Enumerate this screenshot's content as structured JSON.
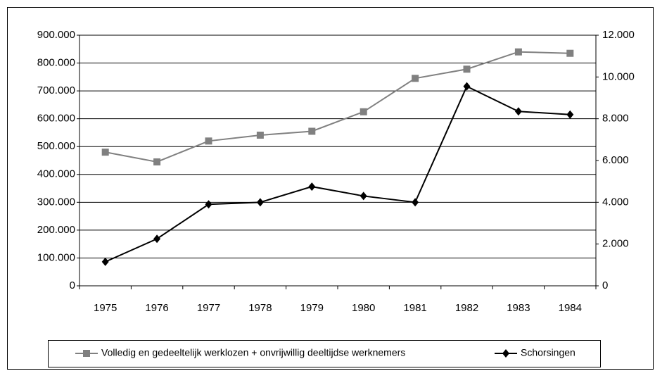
{
  "chart_data": {
    "type": "line",
    "categories": [
      "1975",
      "1976",
      "1977",
      "1978",
      "1979",
      "1980",
      "1981",
      "1982",
      "1983",
      "1984"
    ],
    "series": [
      {
        "name": "Volledig en gedeeltelijk werklozen + onvrijwillig deeltijdse werknemers",
        "color": "#808080",
        "marker": "square",
        "values": [
          480000,
          445000,
          520000,
          541000,
          555000,
          625000,
          745000,
          778000,
          840000,
          835000
        ]
      },
      {
        "name": "Schorsingen",
        "color": "#000000",
        "marker": "diamond",
        "axis": "y2",
        "values": [
          1150,
          2250,
          3900,
          4000,
          4750,
          4300,
          4000,
          9550,
          8350,
          8200
        ]
      }
    ],
    "ylim": [
      0,
      900000
    ],
    "yticks": [
      0,
      {
        "value": 100000,
        "label": "100.000"
      },
      {
        "value": 200000,
        "label": "200.000"
      },
      {
        "value": 300000,
        "label": "300.000"
      },
      {
        "value": 400000,
        "label": "400.000"
      },
      {
        "value": 500000,
        "label": "500.000"
      },
      {
        "value": 600000,
        "label": "600.000"
      },
      {
        "value": 700000,
        "label": "700.000"
      },
      {
        "value": 800000,
        "label": "800.000"
      },
      {
        "value": 900000,
        "label": "900.000"
      }
    ],
    "y2lim": [
      0,
      12000
    ],
    "y2ticks": [
      0,
      {
        "value": 2000,
        "label": "2.000"
      },
      {
        "value": 4000,
        "label": "4.000"
      },
      {
        "value": 6000,
        "label": "6.000"
      },
      {
        "value": 8000,
        "label": "8.000"
      },
      {
        "value": 10000,
        "label": "10.000"
      },
      {
        "value": 12000,
        "label": "12.000"
      }
    ],
    "grid": true,
    "legend": "bottom"
  }
}
